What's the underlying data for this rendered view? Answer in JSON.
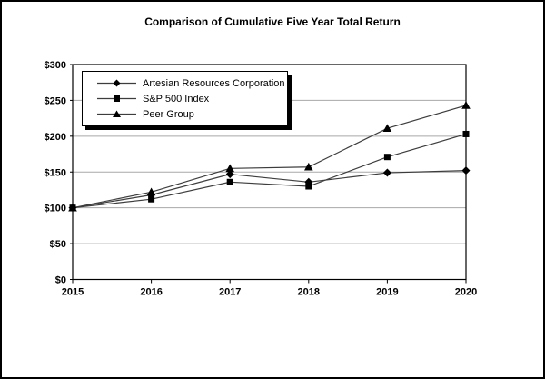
{
  "window": {
    "background_color": "#ffffff",
    "border_color": "#000000"
  },
  "chart_data": {
    "type": "line",
    "title": "Comparison of Cumulative Five Year Total Return",
    "categories": [
      "2015",
      "2016",
      "2017",
      "2018",
      "2019",
      "2020"
    ],
    "series": [
      {
        "name": "Artesian Resources Corporation",
        "marker": "diamond",
        "values": [
          100,
          118,
          147,
          136,
          149,
          152
        ]
      },
      {
        "name": "S&P 500 Index",
        "marker": "square",
        "values": [
          100,
          112,
          136,
          130,
          171,
          203
        ]
      },
      {
        "name": "Peer Group",
        "marker": "triangle",
        "values": [
          100,
          122,
          155,
          157,
          211,
          243
        ]
      }
    ],
    "xlabel": "",
    "ylabel": "",
    "ylim": [
      0,
      300
    ],
    "ytick_step": 50,
    "y_tick_labels": [
      "$0",
      "$50",
      "$100",
      "$150",
      "$200",
      "$250",
      "$300"
    ],
    "grid": true,
    "gridline_color": "#a8a8a8",
    "line_color": "#3d3d3d",
    "marker_color": "#000000",
    "legend_position": "top-left-inside",
    "legend_shadow": true
  }
}
